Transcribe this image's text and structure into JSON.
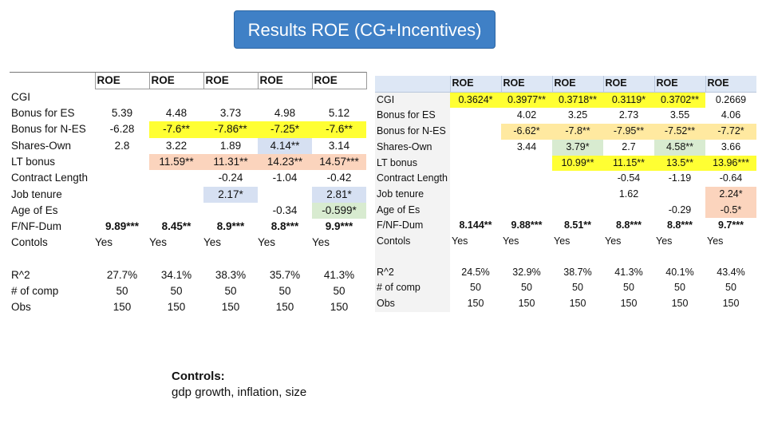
{
  "title": "Results ROE (CG+Incentives)",
  "left_table": {
    "headers": [
      "ROE",
      "ROE",
      "ROE",
      "ROE",
      "ROE"
    ],
    "rows": [
      {
        "label": "CGI",
        "cells": [
          "",
          "",
          "",
          "",
          ""
        ]
      },
      {
        "label": "Bonus for ES",
        "cells": [
          "5.39",
          "4.48",
          "3.73",
          "4.98",
          "5.12"
        ]
      },
      {
        "label": "Bonus for N-ES",
        "cells": [
          "-6.28",
          "-7.6**",
          "-7.86**",
          "-7.25*",
          "-7.6**"
        ]
      },
      {
        "label": "Shares-Own",
        "cells": [
          "2.8",
          "3.22",
          "1.89",
          "4.14**",
          "3.14"
        ]
      },
      {
        "label": "LT bonus",
        "cells": [
          "",
          "11.59**",
          "11.31**",
          "14.23**",
          "14.57***"
        ]
      },
      {
        "label": "Contract Length",
        "cells": [
          "",
          "",
          "-0.24",
          "-1.04",
          "-0.42"
        ]
      },
      {
        "label": "Job tenure",
        "cells": [
          "",
          "",
          "2.17*",
          "",
          "2.81*"
        ]
      },
      {
        "label": "Age of Es",
        "cells": [
          "",
          "",
          "",
          "-0.34",
          "-0.599*"
        ]
      },
      {
        "label": "F/NF-Dum",
        "cells": [
          "9.89***",
          "8.45**",
          "8.9***",
          "8.8***",
          "9.9***"
        ]
      },
      {
        "label": "Contols",
        "cells": [
          "Yes",
          "Yes",
          "Yes",
          "Yes",
          "Yes"
        ]
      },
      {
        "label": "",
        "cells": [
          "",
          "",
          "",
          "",
          ""
        ]
      },
      {
        "label": "R^2",
        "cells": [
          "27.7%",
          "34.1%",
          "38.3%",
          "35.7%",
          "41.3%"
        ]
      },
      {
        "label": "# of comp",
        "cells": [
          "50",
          "50",
          "50",
          "50",
          "50"
        ]
      },
      {
        "label": "Obs",
        "cells": [
          "150",
          "150",
          "150",
          "150",
          "150"
        ]
      }
    ]
  },
  "right_table": {
    "headers": [
      "ROE",
      "ROE",
      "ROE",
      "ROE",
      "ROE",
      "ROE"
    ],
    "rows": [
      {
        "label": "CGI",
        "cells": [
          "0.3624*",
          "0.3977**",
          "0.3718**",
          "0.3119*",
          "0.3702**",
          "0.2669"
        ]
      },
      {
        "label": "Bonus for ES",
        "cells": [
          "",
          "4.02",
          "3.25",
          "2.73",
          "3.55",
          "4.06"
        ]
      },
      {
        "label": "Bonus for N-ES",
        "cells": [
          "",
          "-6.62*",
          "-7.8**",
          "-7.95**",
          "-7.52**",
          "-7.72*"
        ]
      },
      {
        "label": "Shares-Own",
        "cells": [
          "",
          "3.44",
          "3.79*",
          "2.7",
          "4.58**",
          "3.66"
        ]
      },
      {
        "label": "LT bonus",
        "cells": [
          "",
          "",
          "10.99**",
          "11.15**",
          "13.5**",
          "13.96***"
        ]
      },
      {
        "label": "Contract Length",
        "cells": [
          "",
          "",
          "",
          "-0.54",
          "-1.19",
          "-0.64"
        ]
      },
      {
        "label": "Job tenure",
        "cells": [
          "",
          "",
          "",
          "1.62",
          "",
          "2.24*"
        ]
      },
      {
        "label": "Age of Es",
        "cells": [
          "",
          "",
          "",
          "",
          "-0.29",
          "-0.5*"
        ]
      },
      {
        "label": "F/NF-Dum",
        "cells": [
          "8.144**",
          "9.88***",
          "8.51**",
          "8.8***",
          "8.8***",
          "9.7***"
        ]
      },
      {
        "label": "Contols",
        "cells": [
          "Yes",
          "Yes",
          "Yes",
          "Yes",
          "Yes",
          "Yes"
        ]
      },
      {
        "label": "",
        "cells": [
          "",
          "",
          "",
          "",
          "",
          ""
        ]
      },
      {
        "label": "R^2",
        "cells": [
          "24.5%",
          "32.9%",
          "38.7%",
          "41.3%",
          "40.1%",
          "43.4%"
        ]
      },
      {
        "label": "# of comp",
        "cells": [
          "50",
          "50",
          "50",
          "50",
          "50",
          "50"
        ]
      },
      {
        "label": "Obs",
        "cells": [
          "150",
          "150",
          "150",
          "150",
          "150",
          "150"
        ]
      }
    ]
  },
  "controls": {
    "heading": "Controls:",
    "text": "gdp growth, inflation, size"
  },
  "highlight_colors": {
    "yellow": "#ffff33",
    "light_yellow": "#ffe9a0",
    "peach": "#fbd4bd",
    "blue": "#d6e0f2",
    "green": "#d8ebd0",
    "title_blue": "#3f80c6"
  }
}
